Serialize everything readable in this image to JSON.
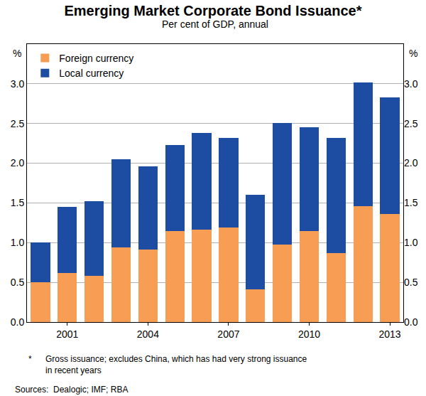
{
  "chart_data": {
    "type": "bar",
    "title": "Emerging Market Corporate Bond Issuance*",
    "subtitle": "Per cent of GDP, annual",
    "y_label": "%",
    "categories": [
      null,
      "2001",
      null,
      null,
      "2004",
      null,
      null,
      "2007",
      null,
      null,
      "2010",
      null,
      null,
      "2013"
    ],
    "series": [
      {
        "name": "Foreign currency",
        "color": "#f79d54",
        "values": [
          0.5,
          0.62,
          0.58,
          0.94,
          0.91,
          1.15,
          1.16,
          1.19,
          0.41,
          0.98,
          1.15,
          0.87,
          1.46,
          1.36
        ]
      },
      {
        "name": "Local currency",
        "color": "#1c4da3",
        "values": [
          0.5,
          0.83,
          0.94,
          1.11,
          1.05,
          1.08,
          1.22,
          1.13,
          1.19,
          1.53,
          1.3,
          1.45,
          1.56,
          1.47
        ]
      }
    ],
    "stacked": true,
    "ylim": [
      0,
      3.5
    ],
    "yticks": [
      {
        "value": 0,
        "label": "0.0"
      },
      0.5,
      {
        "value": 1,
        "label": "1.0"
      },
      1.5,
      {
        "value": 2,
        "label": "2.0"
      },
      2.5,
      {
        "value": 3,
        "label": "3.0"
      }
    ],
    "y2lim": [
      0,
      3.5
    ],
    "y2ticks": [
      {
        "value": 0,
        "label": "0.0"
      },
      0.5,
      {
        "value": 1,
        "label": "1.0"
      },
      1.5,
      {
        "value": 2,
        "label": "2.0"
      },
      2.5,
      {
        "value": 3,
        "label": "3.0"
      }
    ],
    "grid": true,
    "legend": "upper left",
    "footnote": {
      "marker": "*",
      "lines": [
        "Gross issuance; excludes China, which has had very strong issuance",
        "in recent years"
      ]
    },
    "sources": "Sources:  Dealogic; IMF; RBA"
  }
}
